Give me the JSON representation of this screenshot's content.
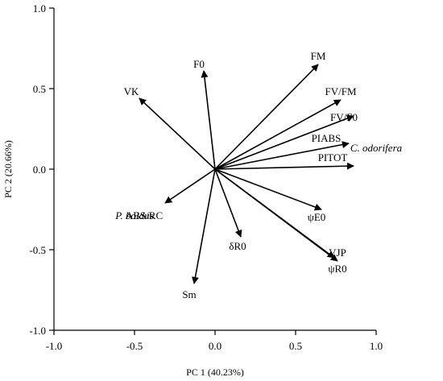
{
  "chart_data": {
    "type": "biplot",
    "xlabel": "PC 1 (40.23%)",
    "ylabel": "PC 2 (20.66%)",
    "xlim": [
      -1.0,
      1.0
    ],
    "ylim": [
      -1.0,
      1.0
    ],
    "x_ticks": [
      "-1.0",
      "-0.5",
      "0.0",
      "0.5",
      "1.0"
    ],
    "y_ticks": [
      "1.0",
      "0.5",
      "0.0",
      "-0.5",
      "-1.0"
    ],
    "grid": false,
    "origin": [
      0,
      0
    ],
    "vectors": [
      {
        "name": "FM",
        "x": 0.64,
        "y": 0.65
      },
      {
        "name": "F0",
        "x": -0.07,
        "y": 0.61
      },
      {
        "name": "VK",
        "x": -0.47,
        "y": 0.44
      },
      {
        "name": "FV/FM",
        "x": 0.78,
        "y": 0.43
      },
      {
        "name": "FV/F0",
        "x": 0.86,
        "y": 0.33
      },
      {
        "name": "PIABS",
        "x": 0.83,
        "y": 0.16
      },
      {
        "name": "PITOT",
        "x": 0.86,
        "y": 0.02
      },
      {
        "name": "ψE0",
        "x": 0.66,
        "y": -0.25
      },
      {
        "name": "VJP",
        "x": 0.74,
        "y": -0.55
      },
      {
        "name": "ψR0",
        "x": 0.76,
        "y": -0.57
      },
      {
        "name": "δR0",
        "x": 0.16,
        "y": -0.42
      },
      {
        "name": "Sm",
        "x": -0.13,
        "y": -0.71
      },
      {
        "name": "ABS/RC",
        "x": -0.31,
        "y": -0.21
      }
    ],
    "group_labels": [
      {
        "name": "C. odorifera",
        "x": 1.0,
        "y": 0.11
      },
      {
        "name": "P. boldus",
        "x": -0.5,
        "y": -0.31
      }
    ]
  }
}
